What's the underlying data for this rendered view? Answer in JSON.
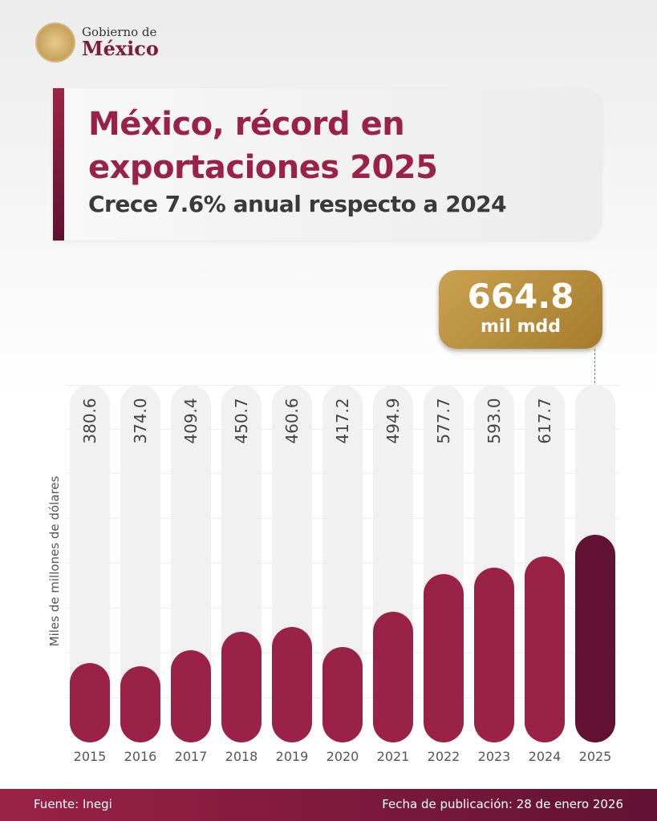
{
  "logo": {
    "line1": "Gobierno de",
    "line2": "México"
  },
  "header": {
    "title": "México, récord en exportaciones 2025",
    "subtitle": "Crece 7.6% anual respecto a 2024"
  },
  "callout": {
    "value": "664.8",
    "unit": "mil mdd"
  },
  "colors": {
    "bar": "#9b2247",
    "highlight_bar": "#611232",
    "callout": "#b8913f"
  },
  "chart_data": {
    "type": "bar",
    "ylabel": "Miles de millones de dólares",
    "categories": [
      "2015",
      "2016",
      "2017",
      "2018",
      "2019",
      "2020",
      "2021",
      "2022",
      "2023",
      "2024",
      "2025"
    ],
    "values": [
      380.6,
      374.0,
      409.4,
      450.7,
      460.6,
      417.2,
      494.9,
      577.7,
      593.0,
      617.7,
      664.8
    ],
    "value_labels": [
      "380.6",
      "374.0",
      "409.4",
      "450.7",
      "460.6",
      "417.2",
      "494.9",
      "577.7",
      "593.0",
      "617.7",
      ""
    ],
    "highlight": "2025",
    "grid": true
  },
  "footer": {
    "source": "Fuente: Inegi",
    "date": "Fecha de publicación: 28 de enero 2026"
  }
}
